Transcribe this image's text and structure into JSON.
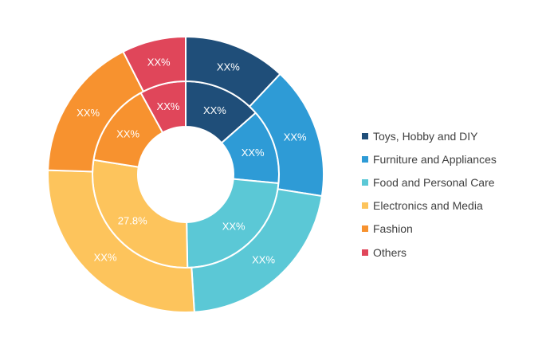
{
  "chart_data": {
    "type": "pie",
    "title": "",
    "categories": [
      "Toys, Hobby and DIY",
      "Furniture and Appliances",
      "Food and Personal Care",
      "Electronics and Media",
      "Fashion",
      "Others"
    ],
    "colors": [
      "#1f4e79",
      "#2e9bd6",
      "#5bc8d6",
      "#fdc45c",
      "#f7922f",
      "#e0465a"
    ],
    "series": [
      {
        "values": [
          13.5,
          13.0,
          23.2,
          27.8,
          14.5,
          8.0
        ],
        "labels": [
          "XX%",
          "XX%",
          "XX%",
          "27.8%",
          "XX%",
          "XX%"
        ]
      },
      {
        "values": [
          12.0,
          15.5,
          21.5,
          26.5,
          17.0,
          7.5
        ],
        "labels": [
          "XX%",
          "XX%",
          "XX%",
          "XX%",
          "XX%",
          "XX%"
        ]
      }
    ],
    "legend_position": "right"
  }
}
